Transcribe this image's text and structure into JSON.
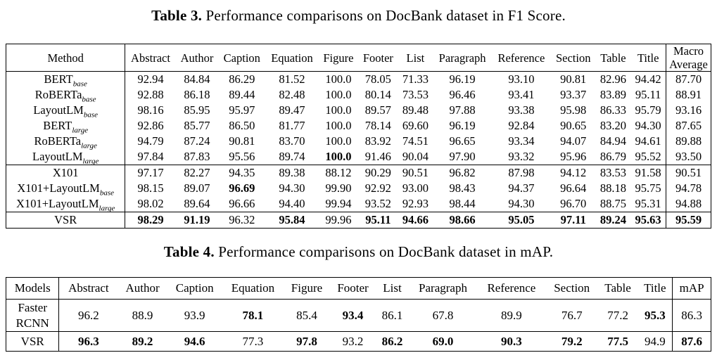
{
  "table3": {
    "caption_label": "Table 3.",
    "caption_text": "Performance comparisons on DocBank dataset in F1 Score.",
    "headers": [
      "Method",
      "Abstract",
      "Author",
      "Caption",
      "Equation",
      "Figure",
      "Footer",
      "List",
      "Paragraph",
      "Reference",
      "Section",
      "Table",
      "Title",
      "Macro Average"
    ],
    "row_groups": [
      [
        {
          "method": "BERT",
          "sub": "base",
          "values": [
            "92.94",
            "84.84",
            "86.29",
            "81.52",
            "100.0",
            "78.05",
            "71.33",
            "96.19",
            "93.10",
            "90.81",
            "82.96",
            "94.42",
            "87.70"
          ],
          "bold": []
        },
        {
          "method": "RoBERTa",
          "sub": "base",
          "values": [
            "92.88",
            "86.18",
            "89.44",
            "82.48",
            "100.0",
            "80.14",
            "73.53",
            "96.46",
            "93.41",
            "93.37",
            "83.89",
            "95.11",
            "88.91"
          ],
          "bold": []
        },
        {
          "method": "LayoutLM",
          "sub": "base",
          "values": [
            "98.16",
            "85.95",
            "95.97",
            "89.47",
            "100.0",
            "89.57",
            "89.48",
            "97.88",
            "93.38",
            "95.98",
            "86.33",
            "95.79",
            "93.16"
          ],
          "bold": []
        },
        {
          "method": "BERT",
          "sub": "large",
          "values": [
            "92.86",
            "85.77",
            "86.50",
            "81.77",
            "100.0",
            "78.14",
            "69.60",
            "96.19",
            "92.84",
            "90.65",
            "83.20",
            "94.30",
            "87.65"
          ],
          "bold": []
        },
        {
          "method": "RoBERTa",
          "sub": "large",
          "values": [
            "94.79",
            "87.24",
            "90.81",
            "83.70",
            "100.0",
            "83.92",
            "74.51",
            "96.65",
            "93.34",
            "94.07",
            "84.94",
            "94.61",
            "89.88"
          ],
          "bold": []
        },
        {
          "method": "LayoutLM",
          "sub": "large",
          "values": [
            "97.84",
            "87.83",
            "95.56",
            "89.74",
            "100.0",
            "91.46",
            "90.04",
            "97.90",
            "93.32",
            "95.96",
            "86.79",
            "95.52",
            "93.50"
          ],
          "bold": [
            4
          ]
        }
      ],
      [
        {
          "method": "X101",
          "sub": "",
          "values": [
            "97.17",
            "82.27",
            "94.35",
            "89.38",
            "88.12",
            "90.29",
            "90.51",
            "96.82",
            "87.98",
            "94.12",
            "83.53",
            "91.58",
            "90.51"
          ],
          "bold": []
        },
        {
          "method": "X101+LayoutLM",
          "sub": "base",
          "values": [
            "98.15",
            "89.07",
            "96.69",
            "94.30",
            "99.90",
            "92.92",
            "93.00",
            "98.43",
            "94.37",
            "96.64",
            "88.18",
            "95.75",
            "94.78"
          ],
          "bold": [
            2
          ]
        },
        {
          "method": "X101+LayoutLM",
          "sub": "large",
          "values": [
            "98.02",
            "89.64",
            "96.66",
            "94.40",
            "99.94",
            "93.52",
            "92.93",
            "98.44",
            "94.30",
            "96.70",
            "88.75",
            "95.31",
            "94.88"
          ],
          "bold": []
        }
      ],
      [
        {
          "method": "VSR",
          "sub": "",
          "values": [
            "98.29",
            "91.19",
            "96.32",
            "95.84",
            "99.96",
            "95.11",
            "94.66",
            "98.66",
            "95.05",
            "97.11",
            "89.24",
            "95.63",
            "95.59"
          ],
          "bold": [
            0,
            1,
            3,
            5,
            6,
            7,
            8,
            9,
            10,
            11,
            12
          ]
        }
      ]
    ]
  },
  "table4": {
    "caption_label": "Table 4.",
    "caption_text": "Performance comparisons on DocBank dataset in mAP.",
    "headers": [
      "Models",
      "Abstract",
      "Author",
      "Caption",
      "Equation",
      "Figure",
      "Footer",
      "List",
      "Paragraph",
      "Reference",
      "Section",
      "Table",
      "Title",
      "mAP"
    ],
    "rows": [
      {
        "label_lines": [
          "Faster",
          "RCNN"
        ],
        "values": [
          "96.2",
          "88.9",
          "93.9",
          "78.1",
          "85.4",
          "93.4",
          "86.1",
          "67.8",
          "89.9",
          "76.7",
          "77.2",
          "95.3",
          "86.3"
        ],
        "bold": [
          3,
          5,
          11
        ]
      },
      {
        "label_lines": [
          "VSR"
        ],
        "values": [
          "96.3",
          "89.2",
          "94.6",
          "77.3",
          "97.8",
          "93.2",
          "86.2",
          "69.0",
          "90.3",
          "79.2",
          "77.5",
          "94.9",
          "87.6"
        ],
        "bold": [
          0,
          1,
          2,
          4,
          6,
          7,
          8,
          9,
          10,
          12
        ]
      }
    ]
  }
}
